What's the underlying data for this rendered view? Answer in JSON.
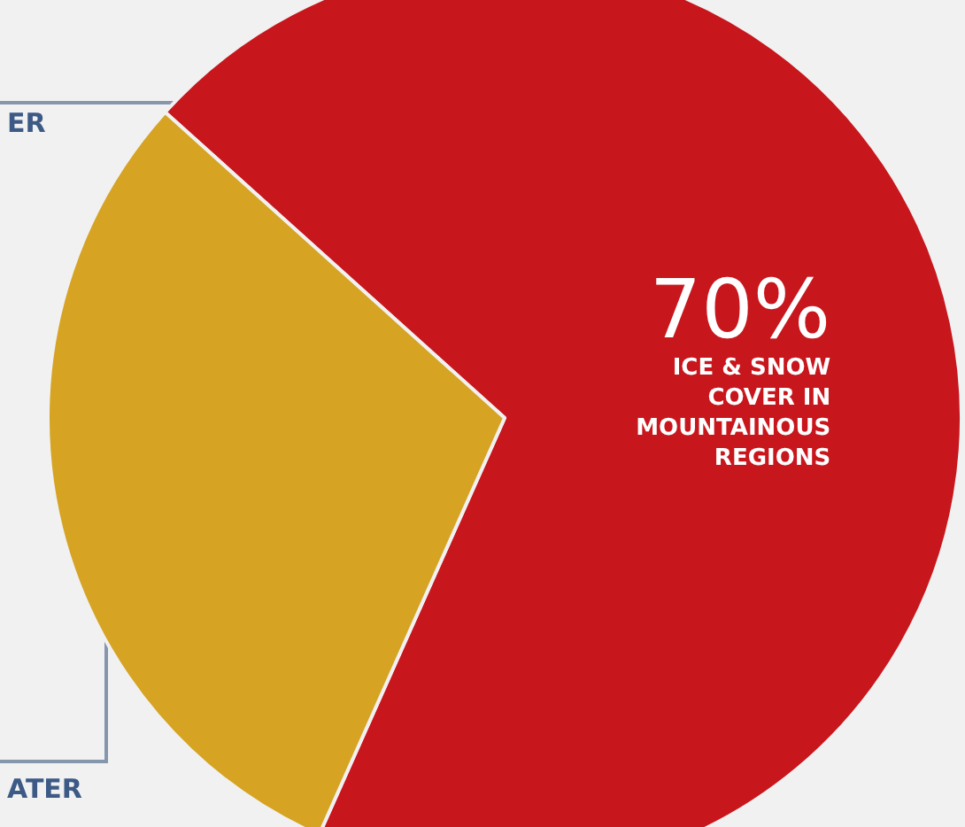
{
  "chart_data": {
    "type": "pie",
    "categories": [
      "ICE & SNOW COVER IN MOUNTAINOUS REGIONS",
      null
    ],
    "values": [
      70,
      30
    ],
    "value_labels": [
      "70%",
      null
    ],
    "colors": [
      "#c8161d",
      "#d6a323"
    ],
    "legend": false,
    "annotations": [
      "ER",
      "ATER"
    ]
  }
}
